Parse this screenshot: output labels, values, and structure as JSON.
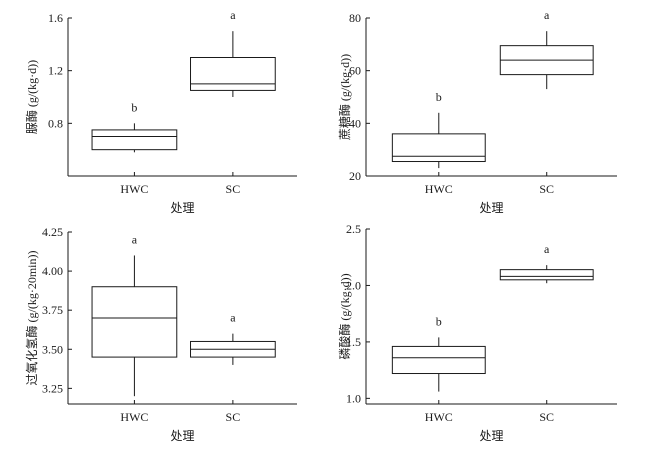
{
  "chart_data": [
    {
      "type": "box",
      "xlabel": "处理",
      "ylabel": "脲酶 (g/(kg·d))",
      "ylim": [
        0.4,
        1.6
      ],
      "yticks": [
        0.8,
        1.2,
        1.6
      ],
      "ytick_labels": [
        "0.8",
        "1.2",
        "1.6"
      ],
      "categories": [
        "HWC",
        "SC"
      ],
      "boxes": [
        {
          "category": "HWC",
          "min": 0.58,
          "q1": 0.6,
          "median": 0.7,
          "q3": 0.75,
          "max": 0.8,
          "letter": "b"
        },
        {
          "category": "SC",
          "min": 1.0,
          "q1": 1.05,
          "median": 1.1,
          "q3": 1.3,
          "max": 1.5,
          "letter": "a"
        }
      ]
    },
    {
      "type": "box",
      "xlabel": "处理",
      "ylabel": "蔗糖酶 (g/(kg·d))",
      "ylim": [
        20,
        80
      ],
      "yticks": [
        20,
        40,
        60,
        80
      ],
      "ytick_labels": [
        "20",
        "40",
        "60",
        "80"
      ],
      "categories": [
        "HWC",
        "SC"
      ],
      "boxes": [
        {
          "category": "HWC",
          "min": 23,
          "q1": 25.5,
          "median": 27.5,
          "q3": 36,
          "max": 44,
          "letter": "b"
        },
        {
          "category": "SC",
          "min": 53,
          "q1": 58.5,
          "median": 64,
          "q3": 69.5,
          "max": 75,
          "letter": "a"
        }
      ]
    },
    {
      "type": "box",
      "xlabel": "处理",
      "ylabel": "过氧化氢酶 (g/(kg·20min))",
      "ylim": [
        3.15,
        4.25
      ],
      "yticks": [
        3.25,
        3.5,
        3.75,
        4.0,
        4.25
      ],
      "ytick_labels": [
        "3.25",
        "3.50",
        "3.75",
        "4.00",
        "4.25"
      ],
      "categories": [
        "HWC",
        "SC"
      ],
      "boxes": [
        {
          "category": "HWC",
          "min": 3.2,
          "q1": 3.45,
          "median": 3.7,
          "q3": 3.9,
          "max": 4.1,
          "letter": "a"
        },
        {
          "category": "SC",
          "min": 3.4,
          "q1": 3.45,
          "median": 3.5,
          "q3": 3.55,
          "max": 3.6,
          "letter": "a"
        }
      ]
    },
    {
      "type": "box",
      "xlabel": "处理",
      "ylabel": "磷酸酶 (g/(kg·d))",
      "ylim": [
        0.95,
        2.5
      ],
      "yticks": [
        1.0,
        1.5,
        2.0,
        2.5
      ],
      "ytick_labels": [
        "1.0",
        "1.5",
        "2.0",
        "2.5"
      ],
      "categories": [
        "HWC",
        "SC"
      ],
      "boxes": [
        {
          "category": "HWC",
          "min": 1.06,
          "q1": 1.22,
          "median": 1.36,
          "q3": 1.46,
          "max": 1.54,
          "letter": "b"
        },
        {
          "category": "SC",
          "min": 2.02,
          "q1": 2.05,
          "median": 2.08,
          "q3": 2.14,
          "max": 2.18,
          "letter": "a"
        }
      ]
    }
  ]
}
